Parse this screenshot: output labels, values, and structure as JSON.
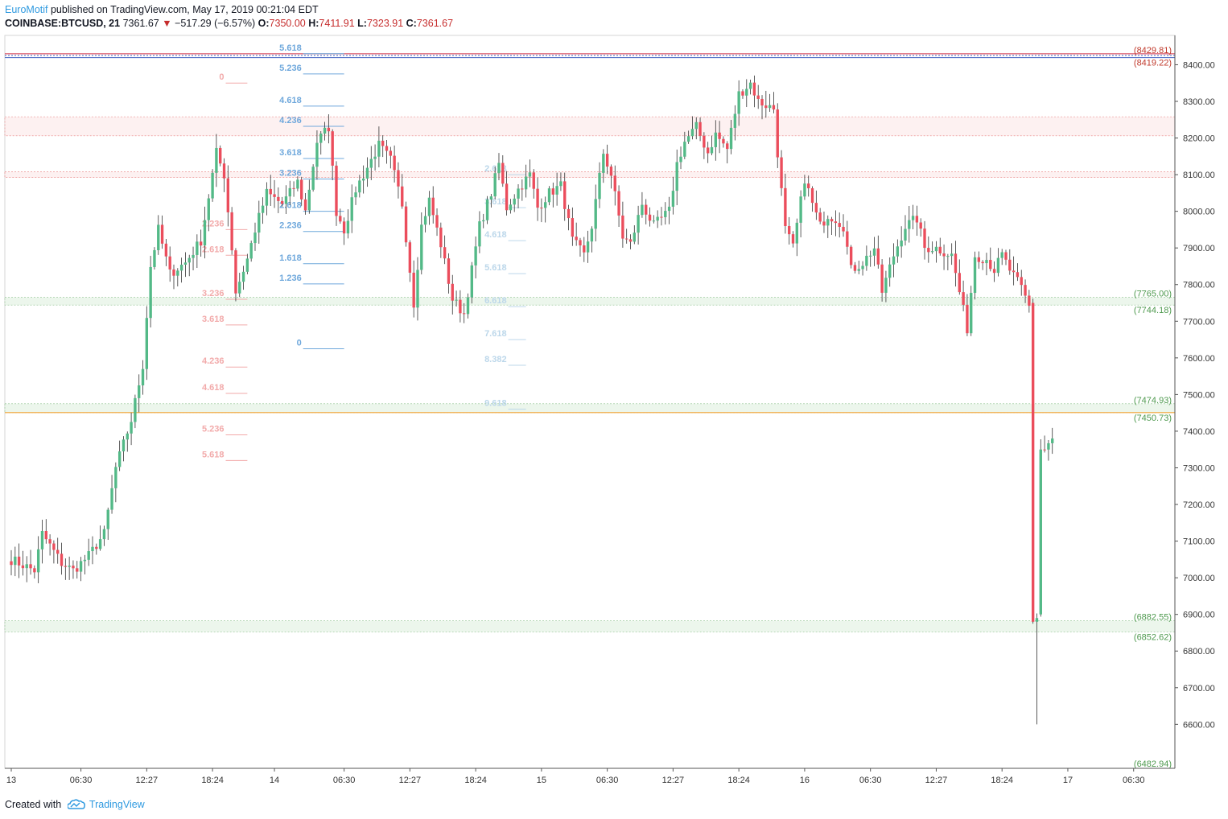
{
  "header": {
    "author": "EuroMotif",
    "published_text": "published on TradingView.com, May 17, 2019 00:21:04 EDT",
    "symbol": "COINBASE:BTCUSD, 21",
    "last": "7361.67",
    "change": "−517.29 (−6.57%)",
    "open_label": "O:",
    "open": "7350.00",
    "high_label": "H:",
    "high": "7411.91",
    "low_label": "L:",
    "low": "7323.91",
    "close_label": "C:",
    "close": "7361.67",
    "arrow_icon": "triangle-down-icon"
  },
  "footer": {
    "created_with": "Created with",
    "brand": "TradingView",
    "logo_icon": "tradingview-cloud-icon"
  },
  "chart_data": {
    "type": "candlestick",
    "title": "",
    "ylim": [
      6480,
      8480
    ],
    "xlim_bars": [
      0,
      299
    ],
    "y_ticks": [
      6600,
      6700,
      6800,
      6900,
      7000,
      7100,
      7200,
      7300,
      7400,
      7500,
      7600,
      7700,
      7800,
      7900,
      8000,
      8100,
      8200,
      8300,
      8400
    ],
    "y_tick_labels": [
      "6600.00",
      "6700.00",
      "6800.00",
      "6900.00",
      "7000.00",
      "7100.00",
      "7200.00",
      "7300.00",
      "7400.00",
      "7500.00",
      "7600.00",
      "7700.00",
      "7800.00",
      "7900.00",
      "8000.00",
      "8100.00",
      "8200.00",
      "8300.00",
      "8400.00"
    ],
    "x_ticks": [
      {
        "label": "13",
        "bar": 0
      },
      {
        "label": "06:30",
        "bar": 18
      },
      {
        "label": "12:27",
        "bar": 35
      },
      {
        "label": "18:24",
        "bar": 52
      },
      {
        "label": "14",
        "bar": 68
      },
      {
        "label": "06:30",
        "bar": 86
      },
      {
        "label": "12:27",
        "bar": 103
      },
      {
        "label": "18:24",
        "bar": 120
      },
      {
        "label": "15",
        "bar": 137
      },
      {
        "label": "06:30",
        "bar": 154
      },
      {
        "label": "12:27",
        "bar": 171
      },
      {
        "label": "18:24",
        "bar": 188
      },
      {
        "label": "16",
        "bar": 205
      },
      {
        "label": "06:30",
        "bar": 222
      },
      {
        "label": "12:27",
        "bar": 239
      },
      {
        "label": "18:24",
        "bar": 256
      },
      {
        "label": "17",
        "bar": 273
      },
      {
        "label": "06:30",
        "bar": 290
      },
      {
        "label": "12:27",
        "bar": 307
      }
    ],
    "colors": {
      "up": "#53b987",
      "down": "#eb4d5c",
      "grid": "#e6e6e6",
      "axis": "#555555",
      "orange": "#f0a030",
      "zone_red": "#e88080",
      "zone_green": "#8cc08c",
      "fib_blue": "#6fa8dc",
      "fib_pink": "#f2aaaa",
      "fib_light": "#bcd7ea"
    },
    "keypoints": [
      [
        0,
        7050
      ],
      [
        6,
        7020
      ],
      [
        8,
        7120
      ],
      [
        13,
        7040
      ],
      [
        16,
        7020
      ],
      [
        20,
        7060
      ],
      [
        24,
        7120
      ],
      [
        27,
        7300
      ],
      [
        31,
        7430
      ],
      [
        34,
        7580
      ],
      [
        36,
        7850
      ],
      [
        38,
        7950
      ],
      [
        41,
        7830
      ],
      [
        45,
        7860
      ],
      [
        49,
        7920
      ],
      [
        53,
        8160
      ],
      [
        55,
        8100
      ],
      [
        57,
        7900
      ],
      [
        58,
        7780
      ],
      [
        61,
        7870
      ],
      [
        63,
        7950
      ],
      [
        66,
        8050
      ],
      [
        70,
        8020
      ],
      [
        74,
        8080
      ],
      [
        76,
        8000
      ],
      [
        79,
        8190
      ],
      [
        82,
        8230
      ],
      [
        84,
        8000
      ],
      [
        86,
        7950
      ],
      [
        89,
        8060
      ],
      [
        91,
        8100
      ],
      [
        95,
        8180
      ],
      [
        98,
        8140
      ],
      [
        101,
        8020
      ],
      [
        104,
        7750
      ],
      [
        106,
        7960
      ],
      [
        108,
        8030
      ],
      [
        111,
        7910
      ],
      [
        114,
        7760
      ],
      [
        117,
        7720
      ],
      [
        119,
        7840
      ],
      [
        121,
        7960
      ],
      [
        124,
        8050
      ],
      [
        126,
        8130
      ],
      [
        128,
        8010
      ],
      [
        131,
        8060
      ],
      [
        134,
        8100
      ],
      [
        136,
        8010
      ],
      [
        139,
        8050
      ],
      [
        142,
        8070
      ],
      [
        145,
        7920
      ],
      [
        148,
        7880
      ],
      [
        150,
        7960
      ],
      [
        153,
        8160
      ],
      [
        155,
        8100
      ],
      [
        158,
        7930
      ],
      [
        160,
        7910
      ],
      [
        163,
        8020
      ],
      [
        166,
        7960
      ],
      [
        170,
        8000
      ],
      [
        172,
        8130
      ],
      [
        174,
        8190
      ],
      [
        177,
        8230
      ],
      [
        180,
        8160
      ],
      [
        182,
        8210
      ],
      [
        185,
        8170
      ],
      [
        188,
        8320
      ],
      [
        191,
        8350
      ],
      [
        193,
        8300
      ],
      [
        197,
        8280
      ],
      [
        198,
        8160
      ],
      [
        200,
        7950
      ],
      [
        202,
        7900
      ],
      [
        205,
        8090
      ],
      [
        207,
        8020
      ],
      [
        209,
        7960
      ],
      [
        211,
        7990
      ],
      [
        213,
        7980
      ],
      [
        215,
        7960
      ],
      [
        217,
        7840
      ],
      [
        220,
        7860
      ],
      [
        223,
        7900
      ],
      [
        225,
        7780
      ],
      [
        228,
        7880
      ],
      [
        231,
        7960
      ],
      [
        234,
        7980
      ],
      [
        236,
        7900
      ],
      [
        239,
        7900
      ],
      [
        243,
        7880
      ],
      [
        245,
        7780
      ],
      [
        247,
        7680
      ],
      [
        249,
        7880
      ],
      [
        252,
        7870
      ],
      [
        254,
        7840
      ],
      [
        256,
        7880
      ],
      [
        258,
        7840
      ],
      [
        261,
        7790
      ],
      [
        263,
        7740
      ],
      [
        264,
        7520
      ],
      [
        265,
        6880
      ],
      [
        266,
        6900
      ],
      [
        267,
        7350
      ],
      [
        269,
        7380
      ]
    ],
    "zones": [
      {
        "label_top": "(8429.81)",
        "label_bottom": "(8419.22)",
        "top": 8429.81,
        "bottom": 8419.22,
        "style": "thin"
      },
      {
        "top": 8258,
        "bottom": 8206,
        "style": "red"
      },
      {
        "top": 8108,
        "bottom": 8092,
        "style": "red"
      },
      {
        "label_top": "(7765.00)",
        "label_bottom": "(7744.18)",
        "top": 7765.0,
        "bottom": 7744.18,
        "style": "green"
      },
      {
        "label_top": "(7474.93)",
        "label_bottom": "(7450.73)",
        "top": 7474.93,
        "bottom": 7450.73,
        "style": "green"
      },
      {
        "label_top": "(6882.55)",
        "label_bottom": "(6852.62)",
        "top": 6882.55,
        "bottom": 6852.62,
        "style": "green"
      },
      {
        "label_bottom": "(6482.94)",
        "top": 6482.94,
        "bottom": 6482.94,
        "style": "label"
      }
    ],
    "fib_sets": [
      {
        "color": "fib_blue",
        "bar_start": 75,
        "bar_end": 86,
        "labels": [
          "5.618",
          "5.236",
          "4.618",
          "4.236",
          "3.618",
          "3.236",
          "2.618",
          "2.236",
          "1.618",
          "1.236",
          "0"
        ],
        "values": [
          8430,
          8375,
          8287,
          8232,
          8144,
          8088,
          8000,
          7945,
          7857,
          7802,
          7625
        ]
      },
      {
        "color": "fib_pink",
        "bar_start": 55,
        "bar_end": 61,
        "labels": [
          "0",
          "2.236",
          "2.618",
          "3.236",
          "3.618",
          "4.236",
          "4.618",
          "5.236",
          "5.618"
        ],
        "values": [
          8350,
          7950,
          7880,
          7760,
          7690,
          7575,
          7503,
          7390,
          7320
        ]
      },
      {
        "color": "fib_light",
        "bar_start": 128,
        "bar_end": 133,
        "labels": [
          "2.618",
          "3.618",
          "4.618",
          "5.618",
          "6.618",
          "7.618",
          "8.382",
          "9.618"
        ],
        "values": [
          8100,
          8010,
          7920,
          7830,
          7740,
          7650,
          7580,
          7460
        ]
      }
    ]
  }
}
